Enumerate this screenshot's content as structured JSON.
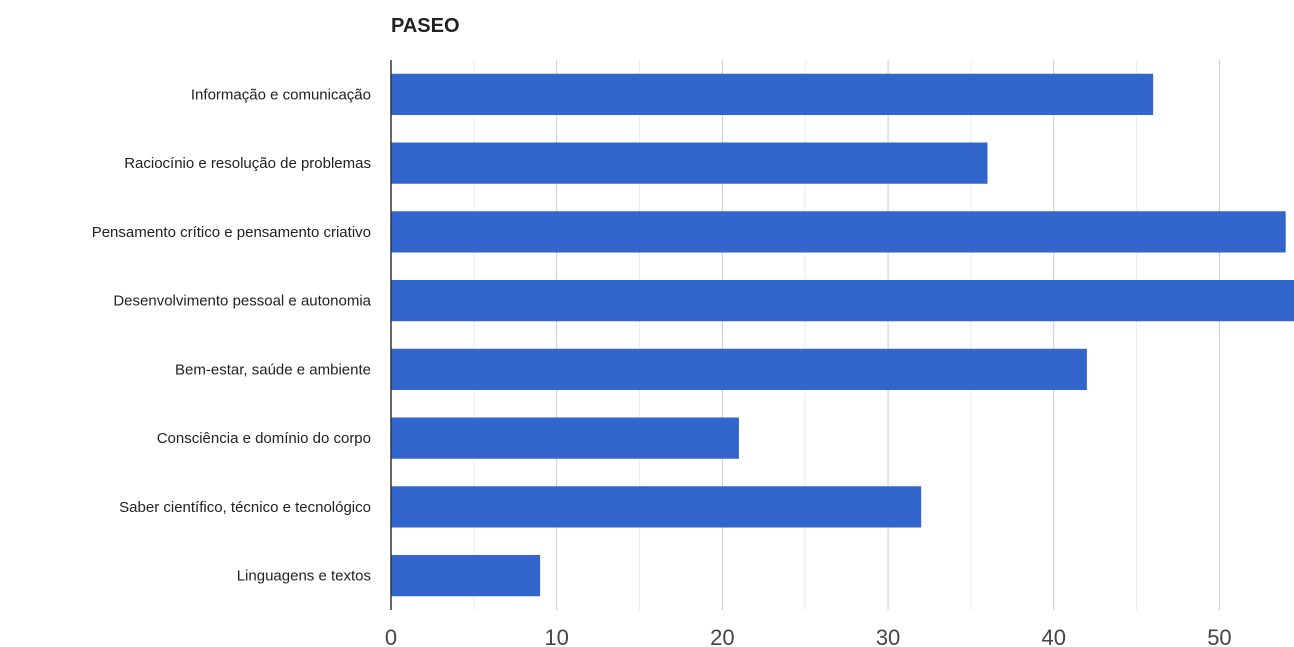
{
  "chart_data": {
    "type": "bar",
    "orientation": "horizontal",
    "title": "PASEO",
    "xlabel": "",
    "ylabel": "",
    "categories": [
      "Informação e comunicação",
      "Raciocínio e resolução de problemas",
      "Pensamento crítico e pensamento criativo",
      "Desenvolvimento pessoal e autonomia",
      "Bem-estar, saúde e ambiente",
      "Consciência e domínio do corpo",
      "Saber científico, técnico e tecnológico",
      "Linguagens e textos"
    ],
    "values": [
      46,
      36,
      54,
      55,
      42,
      21,
      32,
      9
    ],
    "xlim": [
      0,
      54.5
    ],
    "xticks": [
      0,
      10,
      20,
      30,
      40,
      50
    ],
    "minor_gridlines": true,
    "grid": true,
    "legend": "none",
    "colors": {
      "bar": "#3366cc",
      "grid_major": "#cccccc",
      "grid_minor": "#ebebeb",
      "axis": "#333333"
    }
  }
}
